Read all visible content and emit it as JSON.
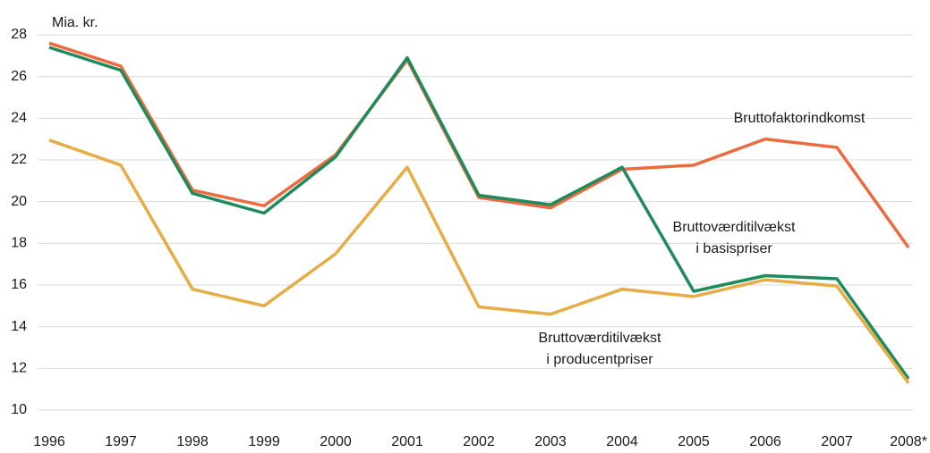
{
  "chart_data": {
    "type": "line",
    "y_label": "Mia. kr.",
    "categories": [
      "1996",
      "1997",
      "1998",
      "1999",
      "2000",
      "2001",
      "2002",
      "2003",
      "2004",
      "2005",
      "2006",
      "2007",
      "2008*"
    ],
    "series": [
      {
        "name": [
          "Bruttofaktorindkomst"
        ],
        "color": "#ec6a3f",
        "values": [
          27.6,
          26.5,
          20.55,
          19.8,
          22.25,
          26.8,
          20.2,
          19.7,
          21.55,
          21.75,
          23.0,
          22.6,
          17.8
        ]
      },
      {
        "name": [
          "Bruttoværditilvækst",
          "i basispriser"
        ],
        "color": "#1f8a5a",
        "values": [
          27.4,
          26.3,
          20.4,
          19.45,
          22.15,
          26.9,
          20.3,
          19.85,
          21.65,
          15.7,
          16.45,
          16.3,
          11.5
        ]
      },
      {
        "name": [
          "Bruttoværditilvækst",
          "i producentpriser"
        ],
        "color": "#e6ac45",
        "values": [
          22.95,
          21.75,
          15.8,
          15.0,
          17.5,
          21.65,
          14.95,
          14.6,
          15.8,
          15.45,
          16.25,
          15.95,
          11.3
        ]
      }
    ],
    "ylim": [
      10,
      28
    ],
    "yticks": [
      10,
      12,
      14,
      16,
      18,
      20,
      22,
      24,
      26,
      28
    ],
    "grid": true
  }
}
